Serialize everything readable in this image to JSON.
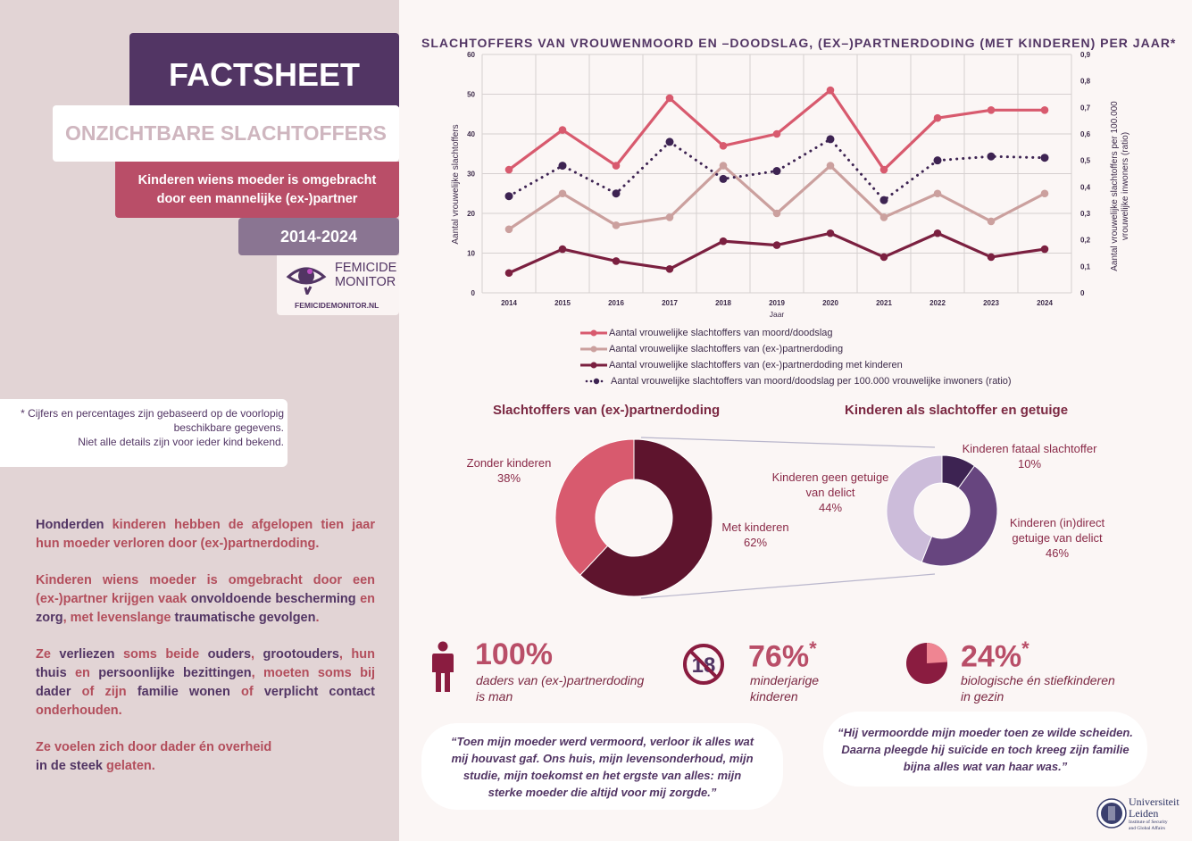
{
  "header": {
    "title": "FACTSHEET",
    "subtitle": "ONZICHTBARE SLACHTOFFERS",
    "topic_line1": "Kinderen wiens moeder is omgebracht",
    "topic_line2": "door een mannelijke (ex-)partner",
    "period": "2014-2024"
  },
  "logo": {
    "line1": "FEMICIDE",
    "line2": "MONITOR",
    "url": "FEMICIDEMONITOR.NL"
  },
  "footnote": {
    "line1": "* Cijfers en percentages zijn gebaseerd op de voorlopig",
    "line2": "beschikbare gegevens.",
    "line3": "Niet alle details zijn voor ieder kind bekend."
  },
  "body": {
    "p1": [
      [
        "Honderden",
        "d"
      ],
      [
        " kinderen hebben de afgelopen tien jaar hun moeder verloren door (ex-)partnerdoding.",
        "r"
      ]
    ],
    "p2": [
      [
        "Kinderen wiens moeder is omgebracht door een (ex-)partner krijgen vaak ",
        "r"
      ],
      [
        "onvoldoende bescherming",
        "d"
      ],
      [
        " en ",
        "r"
      ],
      [
        "zorg",
        "d"
      ],
      [
        ", met levenslange ",
        "r"
      ],
      [
        "traumatische gevolgen",
        "d"
      ],
      [
        ".",
        "r"
      ]
    ],
    "p3": [
      [
        "Ze ",
        "r"
      ],
      [
        "verliezen",
        "d"
      ],
      [
        " soms beide ",
        "r"
      ],
      [
        "ouders",
        "d"
      ],
      [
        ", ",
        "r"
      ],
      [
        "grootouders",
        "d"
      ],
      [
        ", hun ",
        "r"
      ],
      [
        "thuis",
        "d"
      ],
      [
        " en ",
        "r"
      ],
      [
        "persoonlijke bezittingen",
        "d"
      ],
      [
        ", moeten soms bij ",
        "r"
      ],
      [
        "dader",
        "d"
      ],
      [
        " of zijn ",
        "r"
      ],
      [
        "familie wonen",
        "d"
      ],
      [
        " of ",
        "r"
      ],
      [
        "verplicht contact",
        "d"
      ],
      [
        " onderhouden.",
        "r"
      ]
    ],
    "p4a": "Ze voelen zich door dader én overheid",
    "p4b_dark": "in de steek",
    "p4b_red": " gelaten."
  },
  "chart_data": {
    "type": "line",
    "title": "SLACHTOFFERS VAN VROUWENMOORD EN –DOODSLAG, (EX–)PARTNERDODING (MET KINDEREN) PER JAAR*",
    "xlabel": "Jaar",
    "ylabel": "Aantal vrouwelijke slachtoffers",
    "y2label_line1": "Aantal vrouwelijke slachtoffers per 100.000",
    "y2label_line2": "vrouwelijke inwoners (ratio)",
    "x": [
      "2014",
      "2015",
      "2016",
      "2017",
      "2018",
      "2019",
      "2020",
      "2021",
      "2022",
      "2023",
      "2024"
    ],
    "ylim": [
      0,
      60
    ],
    "y2lim": [
      0,
      0.9
    ],
    "yticks": [
      "0",
      "10",
      "20",
      "30",
      "40",
      "50",
      "60"
    ],
    "y2ticks": [
      "0",
      "0,1",
      "0,2",
      "0,3",
      "0,4",
      "0,5",
      "0,6",
      "0,7",
      "0,8",
      "0,9"
    ],
    "grid": true,
    "legend_position": "bottom",
    "series": [
      {
        "name": "Aantal vrouwelijke slachtoffers van moord/doodslag",
        "axis": "left",
        "color": "#d85a6e",
        "style": "solid",
        "values": [
          31,
          41,
          32,
          49,
          37,
          40,
          51,
          31,
          44,
          46,
          46
        ]
      },
      {
        "name": "Aantal vrouwelijke slachtoffers van (ex-)partnerdoding",
        "axis": "left",
        "color": "#cba09e",
        "style": "solid",
        "values": [
          16,
          25,
          17,
          19,
          32,
          20,
          32,
          19,
          25,
          18,
          25
        ]
      },
      {
        "name": "Aantal vrouwelijke slachtoffers van (ex-)partnerdoding met kinderen",
        "axis": "left",
        "color": "#7b2040",
        "style": "solid",
        "values": [
          5,
          11,
          8,
          6,
          13,
          12,
          15,
          9,
          15,
          9,
          11
        ]
      },
      {
        "name": "Aantal vrouwelijke slachtoffers van moord/doodslag per 100.000 vrouwelijke inwoners (ratio)",
        "axis": "right",
        "color": "#3d2352",
        "style": "dotted",
        "values": [
          0.365,
          0.48,
          0.375,
          0.57,
          0.43,
          0.46,
          0.58,
          0.35,
          0.5,
          0.515,
          0.51
        ]
      }
    ]
  },
  "donuts": {
    "left": {
      "title": "Slachtoffers van (ex-)partnerdoding",
      "slices": [
        {
          "label": "Met kinderen",
          "pct": "62%",
          "value": 62,
          "color": "#5e142d"
        },
        {
          "label": "Zonder kinderen",
          "pct": "38%",
          "value": 38,
          "color": "#d85a6e"
        }
      ]
    },
    "right": {
      "title": "Kinderen als slachtoffer en getuige",
      "slices": [
        {
          "label": "Kinderen fataal slachtoffer",
          "pct": "10%",
          "value": 10,
          "color": "#3d2352"
        },
        {
          "label_line1": "Kinderen (in)direct",
          "label_line2": "getuige van delict",
          "pct": "46%",
          "value": 46,
          "color": "#67457f"
        },
        {
          "label_line1": "Kinderen geen getuige",
          "label_line2": "van delict",
          "pct": "44%",
          "value": 44,
          "color": "#ccbcda"
        }
      ]
    }
  },
  "stats": [
    {
      "value": "100%",
      "star": "",
      "line1": "daders van (ex-)partnerdoding",
      "line2": "is man",
      "icon": "person-icon"
    },
    {
      "value": "76%",
      "star": "*",
      "line1": "minderjarige",
      "line2": "kinderen",
      "icon": "under-18-icon",
      "icon_text": "18"
    },
    {
      "value": "24%",
      "star": "*",
      "line1": "biologische én stiefkinderen",
      "line2": "in gezin",
      "icon": "pie-icon",
      "fraction": 0.24
    }
  ],
  "quotes": {
    "q1": [
      "“Toen mijn moeder werd vermoord, verloor ik alles wat",
      "mij houvast gaf. Ons huis, mijn levensonderhoud, mijn",
      "studie, mijn toekomst en het ergste van alles: mijn",
      "sterke moeder die altijd voor mij zorgde.”"
    ],
    "q2": [
      "“Hij vermoordde mijn moeder toen ze wilde scheiden.",
      "Daarna pleegde hij suïcide en toch kreeg zijn familie",
      "bijna alles wat van haar was.”"
    ]
  },
  "university": {
    "line1": "Universiteit",
    "line2": "Leiden",
    "line3": "Institute of Security",
    "line4": "and Global Affairs"
  }
}
